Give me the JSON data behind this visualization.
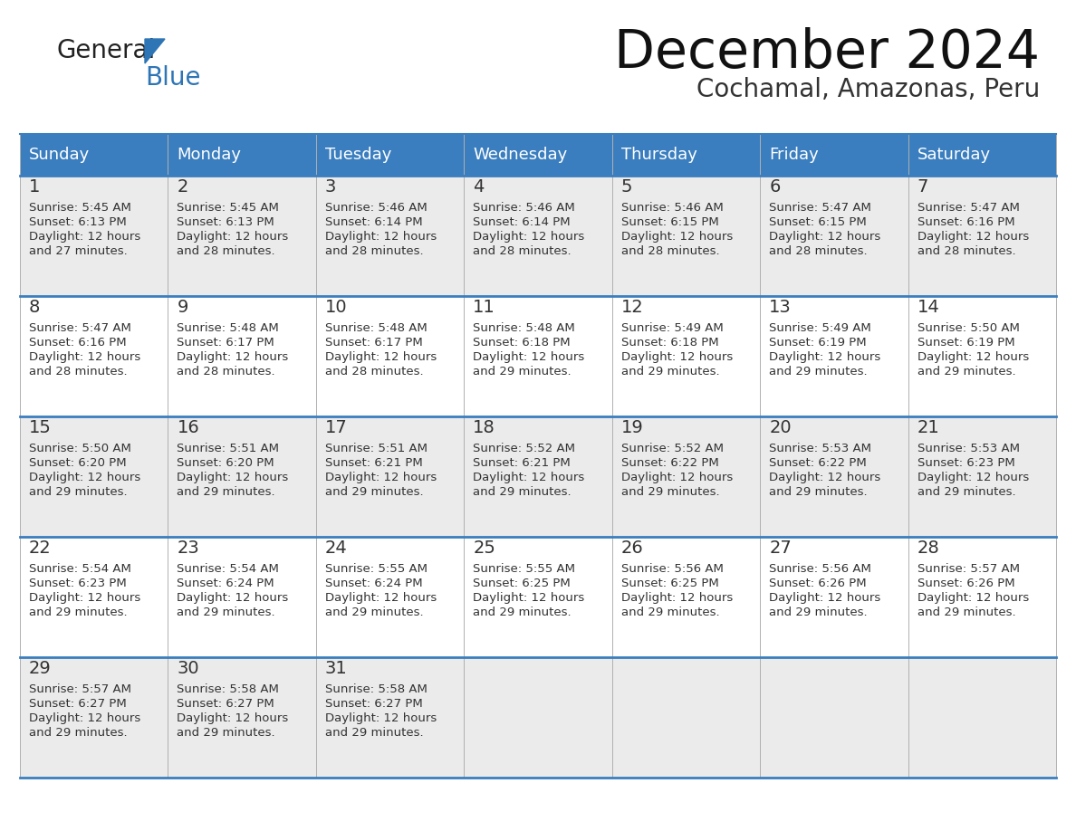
{
  "title": "December 2024",
  "subtitle": "Cochamal, Amazonas, Peru",
  "days_of_week": [
    "Sunday",
    "Monday",
    "Tuesday",
    "Wednesday",
    "Thursday",
    "Friday",
    "Saturday"
  ],
  "header_bg": "#3a7ebf",
  "header_text_color": "#ffffff",
  "cell_bg_light": "#ebebeb",
  "cell_bg_white": "#ffffff",
  "row_line_color": "#3a7ebf",
  "day_num_color": "#333333",
  "text_color": "#333333",
  "bg_color": "#ffffff",
  "logo_general_color": "#222222",
  "logo_blue_color": "#2e75b6",
  "logo_triangle_color": "#2e75b6",
  "calendar_data": [
    [
      {
        "day": 1,
        "sunrise": "5:45 AM",
        "sunset": "6:13 PM",
        "daylight": "12 hours and 27 minutes."
      },
      {
        "day": 2,
        "sunrise": "5:45 AM",
        "sunset": "6:13 PM",
        "daylight": "12 hours and 28 minutes."
      },
      {
        "day": 3,
        "sunrise": "5:46 AM",
        "sunset": "6:14 PM",
        "daylight": "12 hours and 28 minutes."
      },
      {
        "day": 4,
        "sunrise": "5:46 AM",
        "sunset": "6:14 PM",
        "daylight": "12 hours and 28 minutes."
      },
      {
        "day": 5,
        "sunrise": "5:46 AM",
        "sunset": "6:15 PM",
        "daylight": "12 hours and 28 minutes."
      },
      {
        "day": 6,
        "sunrise": "5:47 AM",
        "sunset": "6:15 PM",
        "daylight": "12 hours and 28 minutes."
      },
      {
        "day": 7,
        "sunrise": "5:47 AM",
        "sunset": "6:16 PM",
        "daylight": "12 hours and 28 minutes."
      }
    ],
    [
      {
        "day": 8,
        "sunrise": "5:47 AM",
        "sunset": "6:16 PM",
        "daylight": "12 hours and 28 minutes."
      },
      {
        "day": 9,
        "sunrise": "5:48 AM",
        "sunset": "6:17 PM",
        "daylight": "12 hours and 28 minutes."
      },
      {
        "day": 10,
        "sunrise": "5:48 AM",
        "sunset": "6:17 PM",
        "daylight": "12 hours and 28 minutes."
      },
      {
        "day": 11,
        "sunrise": "5:48 AM",
        "sunset": "6:18 PM",
        "daylight": "12 hours and 29 minutes."
      },
      {
        "day": 12,
        "sunrise": "5:49 AM",
        "sunset": "6:18 PM",
        "daylight": "12 hours and 29 minutes."
      },
      {
        "day": 13,
        "sunrise": "5:49 AM",
        "sunset": "6:19 PM",
        "daylight": "12 hours and 29 minutes."
      },
      {
        "day": 14,
        "sunrise": "5:50 AM",
        "sunset": "6:19 PM",
        "daylight": "12 hours and 29 minutes."
      }
    ],
    [
      {
        "day": 15,
        "sunrise": "5:50 AM",
        "sunset": "6:20 PM",
        "daylight": "12 hours and 29 minutes."
      },
      {
        "day": 16,
        "sunrise": "5:51 AM",
        "sunset": "6:20 PM",
        "daylight": "12 hours and 29 minutes."
      },
      {
        "day": 17,
        "sunrise": "5:51 AM",
        "sunset": "6:21 PM",
        "daylight": "12 hours and 29 minutes."
      },
      {
        "day": 18,
        "sunrise": "5:52 AM",
        "sunset": "6:21 PM",
        "daylight": "12 hours and 29 minutes."
      },
      {
        "day": 19,
        "sunrise": "5:52 AM",
        "sunset": "6:22 PM",
        "daylight": "12 hours and 29 minutes."
      },
      {
        "day": 20,
        "sunrise": "5:53 AM",
        "sunset": "6:22 PM",
        "daylight": "12 hours and 29 minutes."
      },
      {
        "day": 21,
        "sunrise": "5:53 AM",
        "sunset": "6:23 PM",
        "daylight": "12 hours and 29 minutes."
      }
    ],
    [
      {
        "day": 22,
        "sunrise": "5:54 AM",
        "sunset": "6:23 PM",
        "daylight": "12 hours and 29 minutes."
      },
      {
        "day": 23,
        "sunrise": "5:54 AM",
        "sunset": "6:24 PM",
        "daylight": "12 hours and 29 minutes."
      },
      {
        "day": 24,
        "sunrise": "5:55 AM",
        "sunset": "6:24 PM",
        "daylight": "12 hours and 29 minutes."
      },
      {
        "day": 25,
        "sunrise": "5:55 AM",
        "sunset": "6:25 PM",
        "daylight": "12 hours and 29 minutes."
      },
      {
        "day": 26,
        "sunrise": "5:56 AM",
        "sunset": "6:25 PM",
        "daylight": "12 hours and 29 minutes."
      },
      {
        "day": 27,
        "sunrise": "5:56 AM",
        "sunset": "6:26 PM",
        "daylight": "12 hours and 29 minutes."
      },
      {
        "day": 28,
        "sunrise": "5:57 AM",
        "sunset": "6:26 PM",
        "daylight": "12 hours and 29 minutes."
      }
    ],
    [
      {
        "day": 29,
        "sunrise": "5:57 AM",
        "sunset": "6:27 PM",
        "daylight": "12 hours and 29 minutes."
      },
      {
        "day": 30,
        "sunrise": "5:58 AM",
        "sunset": "6:27 PM",
        "daylight": "12 hours and 29 minutes."
      },
      {
        "day": 31,
        "sunrise": "5:58 AM",
        "sunset": "6:27 PM",
        "daylight": "12 hours and 29 minutes."
      },
      null,
      null,
      null,
      null
    ]
  ]
}
